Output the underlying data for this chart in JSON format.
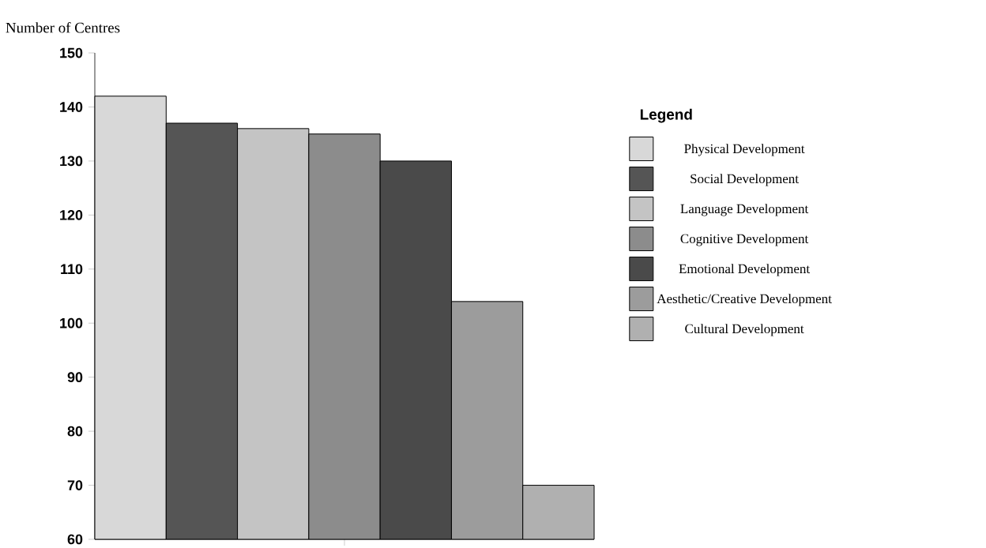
{
  "chart_data": {
    "type": "bar",
    "ylabel": "Number of Centres",
    "legend_title": "Legend",
    "categories": [
      null
    ],
    "series": [
      {
        "name": "Physical Development",
        "color": "#d8d8d8",
        "values": [
          142
        ]
      },
      {
        "name": "Social Development",
        "color": "#555555",
        "values": [
          137
        ]
      },
      {
        "name": "Language Development",
        "color": "#c4c4c4",
        "values": [
          136
        ]
      },
      {
        "name": "Cognitive Development",
        "color": "#8c8c8c",
        "values": [
          135
        ]
      },
      {
        "name": "Emotional Development",
        "color": "#4a4a4a",
        "values": [
          130
        ]
      },
      {
        "name": "Aesthetic/Creative Development",
        "color": "#9c9c9c",
        "values": [
          104
        ]
      },
      {
        "name": "Cultural Development",
        "color": "#b0b0b0",
        "values": [
          70
        ]
      }
    ],
    "ylim": [
      60,
      150
    ],
    "yticks": [
      60,
      70,
      80,
      90,
      100,
      110,
      120,
      130,
      140,
      150
    ],
    "legend": "right",
    "grid": false
  }
}
